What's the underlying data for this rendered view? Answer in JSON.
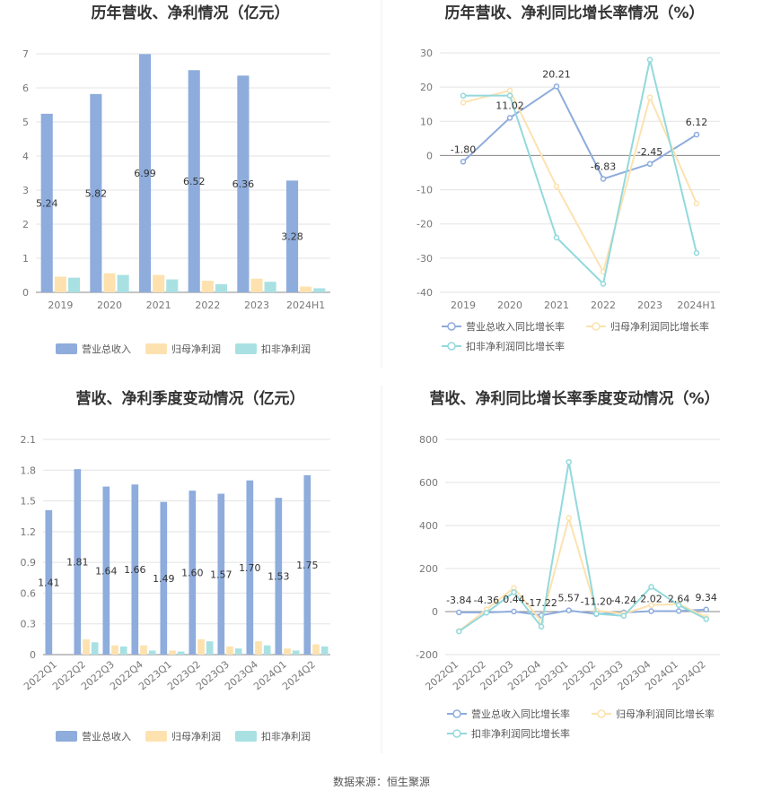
{
  "colors": {
    "revenue": "#8eacdc",
    "net_profit": "#fde2b0",
    "deducted": "#a9e1e3",
    "revenue_line": "#8eacdc",
    "net_line": "#fde2b0",
    "deducted_line": "#93d9dc"
  },
  "footer": {
    "source": "数据来源：恒生聚源"
  },
  "chart_data": [
    {
      "type": "bar",
      "title": "历年营收、净利情况（亿元）",
      "categories": [
        "2019",
        "2020",
        "2021",
        "2022",
        "2023",
        "2024H1"
      ],
      "ylim": [
        0,
        7
      ],
      "yticks": [
        "0",
        "1",
        "2",
        "3",
        "4",
        "5",
        "6",
        "7"
      ],
      "series": [
        {
          "name": "营业总收入",
          "values": [
            5.24,
            5.82,
            6.99,
            6.52,
            6.36,
            3.28
          ]
        },
        {
          "name": "归母净利润",
          "values": [
            0.46,
            0.56,
            0.51,
            0.34,
            0.4,
            0.17
          ]
        },
        {
          "name": "扣非净利润",
          "values": [
            0.43,
            0.51,
            0.38,
            0.24,
            0.31,
            0.12
          ]
        }
      ],
      "data_labels": [
        "5.24",
        "5.82",
        "6.99",
        "6.52",
        "6.36",
        "3.28"
      ],
      "grid": true,
      "legend": "bottom"
    },
    {
      "type": "line",
      "title": "历年营收、净利同比增长率情况（%）",
      "categories": [
        "2019",
        "2020",
        "2021",
        "2022",
        "2023",
        "2024H1"
      ],
      "ylim": [
        -40,
        30
      ],
      "yticks": [
        "-40",
        "-30",
        "-20",
        "-10",
        "0",
        "10",
        "20",
        "30"
      ],
      "series": [
        {
          "name": "营业总收入同比增长率",
          "values": [
            -1.8,
            11.02,
            20.21,
            -6.83,
            -2.45,
            6.12
          ]
        },
        {
          "name": "归母净利润同比增长率",
          "values": [
            15.5,
            19.0,
            -9.0,
            -34.0,
            17.0,
            -14.0
          ]
        },
        {
          "name": "扣非净利润同比增长率",
          "values": [
            17.5,
            17.5,
            -24.0,
            -37.5,
            28.0,
            -28.5
          ]
        }
      ],
      "data_labels": [
        "-1.80",
        "11.02",
        "20.21",
        "-6.83",
        "-2.45",
        "6.12"
      ],
      "grid": true,
      "legend": "bottom"
    },
    {
      "type": "bar",
      "title": "营收、净利季度变动情况（亿元）",
      "categories": [
        "2022Q1",
        "2022Q2",
        "2022Q3",
        "2022Q4",
        "2023Q1",
        "2023Q2",
        "2023Q3",
        "2023Q4",
        "2024Q1",
        "2024Q2"
      ],
      "ylim": [
        0,
        2.1
      ],
      "yticks": [
        "0",
        "0.3",
        "0.6",
        "0.9",
        "1.2",
        "1.5",
        "1.8",
        "2.1"
      ],
      "series": [
        {
          "name": "营业总收入",
          "values": [
            1.41,
            1.81,
            1.64,
            1.66,
            1.49,
            1.6,
            1.57,
            1.7,
            1.53,
            1.75
          ]
        },
        {
          "name": "归母净利润",
          "values": [
            0.0,
            0.15,
            0.09,
            0.09,
            0.04,
            0.15,
            0.08,
            0.13,
            0.06,
            0.1
          ]
        },
        {
          "name": "扣非净利润",
          "values": [
            0.0,
            0.12,
            0.08,
            0.04,
            0.03,
            0.13,
            0.06,
            0.09,
            0.04,
            0.08
          ]
        }
      ],
      "data_labels": [
        "1.41",
        "1.81",
        "1.64",
        "1.66",
        "1.49",
        "1.60",
        "1.57",
        "1.70",
        "1.53",
        "1.75"
      ],
      "grid": true,
      "legend": "bottom"
    },
    {
      "type": "line",
      "title": "营收、净利同比增长率季度变动情况（%）",
      "categories": [
        "2022Q1",
        "2022Q2",
        "2022Q3",
        "2022Q4",
        "2023Q1",
        "2023Q2",
        "2023Q3",
        "2023Q4",
        "2024Q1",
        "2024Q2"
      ],
      "ylim": [
        -200,
        800
      ],
      "yticks": [
        "-200",
        "0",
        "200",
        "400",
        "600",
        "800"
      ],
      "series": [
        {
          "name": "营业总收入同比增长率",
          "values": [
            -3.84,
            -4.36,
            0.44,
            -17.22,
            5.57,
            -11.2,
            -4.24,
            2.02,
            2.64,
            9.34
          ]
        },
        {
          "name": "归母净利润同比增长率",
          "values": [
            -90,
            10,
            110,
            -45,
            435,
            5,
            -10,
            30,
            35,
            -25
          ]
        },
        {
          "name": "扣非净利润同比增长率",
          "values": [
            -92,
            -5,
            90,
            -70,
            695,
            -10,
            -20,
            115,
            30,
            -35
          ]
        }
      ],
      "data_labels": [
        "-3.84",
        "-4.36",
        "0.44",
        "-17.22",
        "5.57",
        "-11.20",
        "-4.24",
        "2.02",
        "2.64",
        "9.34"
      ],
      "grid": true,
      "legend": "bottom"
    }
  ]
}
